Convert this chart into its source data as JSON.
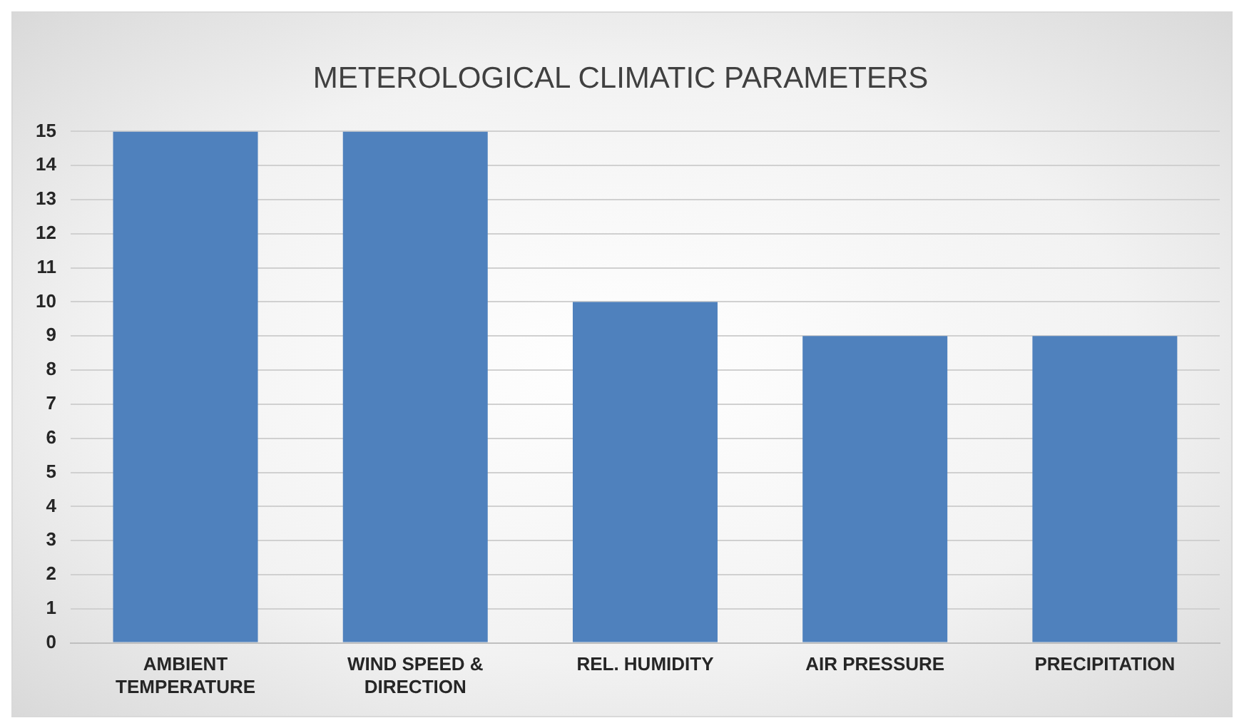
{
  "chart_data": {
    "type": "bar",
    "title": "METEROLOGICAL CLIMATIC PARAMETERS",
    "categories": [
      "AMBIENT TEMPERATURE",
      "WIND SPEED & DIRECTION",
      "REL. HUMIDITY",
      "AIR PRESSURE",
      "PRECIPITATION"
    ],
    "values": [
      15,
      15,
      10,
      9,
      9
    ],
    "color": "#4f81bd",
    "ylim": [
      0,
      15
    ],
    "yticks": [
      0,
      1,
      2,
      3,
      4,
      5,
      6,
      7,
      8,
      9,
      10,
      11,
      12,
      13,
      14,
      15
    ],
    "grid": "y"
  }
}
